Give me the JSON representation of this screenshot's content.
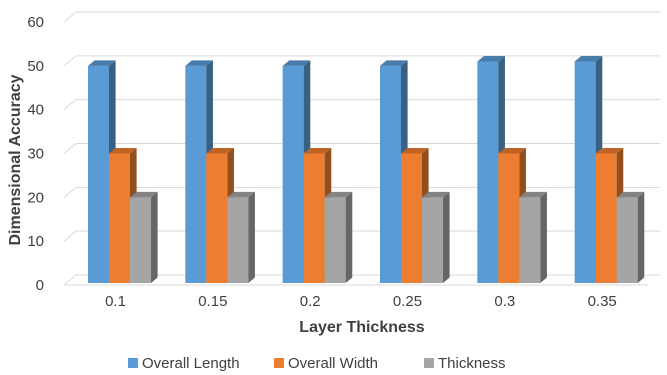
{
  "chart_data": {
    "type": "bar",
    "title": "",
    "xlabel": "Layer Thickness",
    "ylabel": "Dimensional Accuracy",
    "categories": [
      "0.1",
      "0.15",
      "0.2",
      "0.25",
      "0.3",
      "0.35"
    ],
    "series": [
      {
        "name": "Overall Length",
        "values": [
          50,
          50,
          50,
          50,
          51,
          51
        ],
        "color": "#5B9BD5"
      },
      {
        "name": "Overall Width",
        "values": [
          30,
          30,
          30,
          30,
          30,
          30
        ],
        "color": "#ED7D31"
      },
      {
        "name": "Thickness",
        "values": [
          20,
          20,
          20,
          20,
          20,
          20
        ],
        "color": "#A5A5A5"
      }
    ],
    "ylim": [
      0,
      60
    ],
    "yticks": [
      0,
      10,
      20,
      30,
      40,
      50,
      60
    ],
    "grid": true,
    "legend": "bottom",
    "style": "3d-clustered-column"
  }
}
